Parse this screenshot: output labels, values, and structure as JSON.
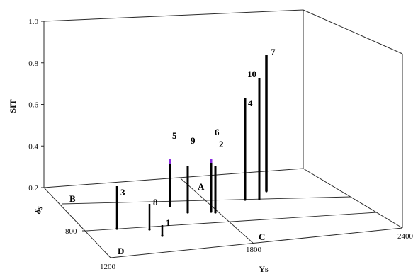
{
  "chart_data": {
    "type": "scatter",
    "projection": "3d-stem",
    "z_axis": {
      "label": "SIT",
      "ticks": [
        "0.2",
        "0.4",
        "0.6",
        "0.8",
        "1.0"
      ],
      "range": [
        0.2,
        1.0
      ]
    },
    "x_axis": {
      "label": "Ys",
      "ticks": [
        "1200",
        "1800",
        "2400"
      ],
      "range": [
        1200,
        2400
      ]
    },
    "y_axis": {
      "label": "δs",
      "ticks": [
        "800"
      ]
    },
    "regions": [
      "A",
      "B",
      "C",
      "D"
    ],
    "points": [
      {
        "label": "1",
        "z": 0.25,
        "accent": false
      },
      {
        "label": "2",
        "z": 0.42,
        "accent": false
      },
      {
        "label": "3",
        "z": 0.4,
        "accent": false
      },
      {
        "label": "4",
        "z": 0.68,
        "accent": false
      },
      {
        "label": "5",
        "z": 0.42,
        "accent": true
      },
      {
        "label": "6",
        "z": 0.45,
        "accent": true
      },
      {
        "label": "7",
        "z": 0.84,
        "accent": false
      },
      {
        "label": "8",
        "z": 0.32,
        "accent": false
      },
      {
        "label": "9",
        "z": 0.42,
        "accent": false
      },
      {
        "label": "10",
        "z": 0.77,
        "accent": false
      }
    ],
    "grid": true,
    "colors": {
      "stem": "#000000",
      "accent": "#8a2be2",
      "frame": "#2b2b2b"
    }
  }
}
